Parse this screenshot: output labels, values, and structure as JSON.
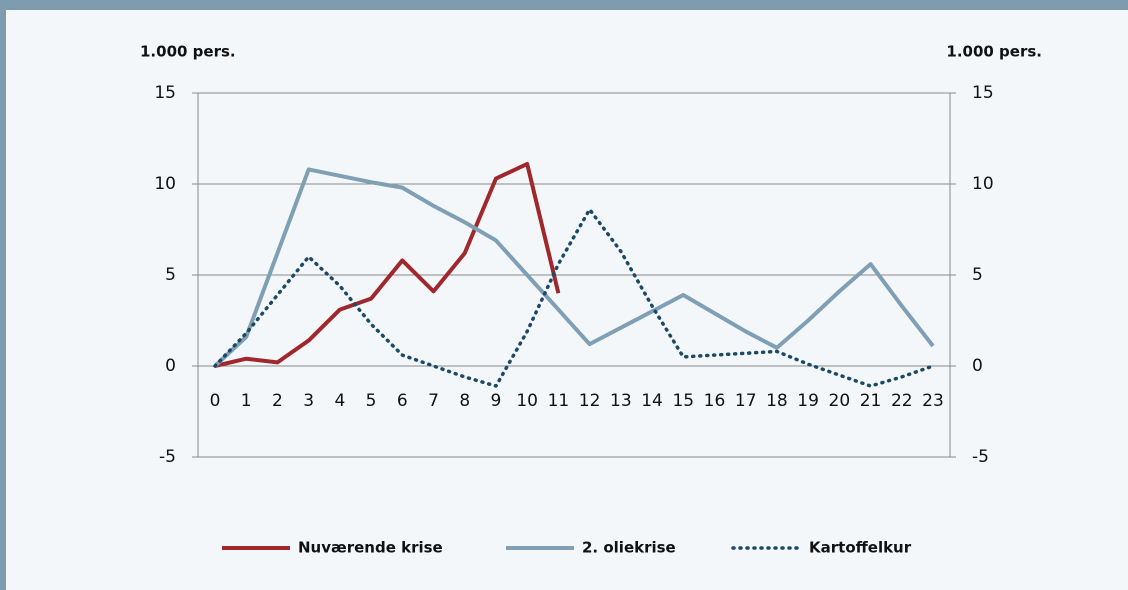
{
  "chart_data": {
    "type": "line",
    "ylabel": "1.000 pers.",
    "y2label": "1.000 pers.",
    "x": [
      0,
      1,
      2,
      3,
      4,
      5,
      6,
      7,
      8,
      9,
      10,
      11,
      12,
      13,
      14,
      15,
      16,
      17,
      18,
      19,
      20,
      21,
      22,
      23
    ],
    "xlim": [
      0,
      23
    ],
    "xticks": [
      0,
      1,
      2,
      3,
      4,
      5,
      6,
      7,
      8,
      9,
      10,
      11,
      12,
      13,
      14,
      15,
      16,
      17,
      18,
      19,
      20,
      21,
      22,
      23
    ],
    "ylim": [
      -5,
      15
    ],
    "yticks": [
      -5,
      0,
      5,
      10,
      15
    ],
    "y2lim": [
      -5,
      15
    ],
    "y2ticks": [
      -5,
      0,
      5,
      10,
      15
    ],
    "grid": true,
    "legend": "bottom",
    "series": [
      {
        "name": "Nuværende krise",
        "color": "#a0282d",
        "style": "solid",
        "values": [
          0,
          0.4,
          0.2,
          1.4,
          3.1,
          3.7,
          5.8,
          4.1,
          6.2,
          10.3,
          11.1,
          4.0,
          null,
          null,
          null,
          null,
          null,
          null,
          null,
          null,
          null,
          null,
          null,
          null
        ]
      },
      {
        "name": "2. oliekrise",
        "color": "#7f9fb5",
        "style": "solid",
        "values": [
          0,
          1.6,
          6.2,
          10.8,
          10.45,
          10.1,
          9.8,
          8.8,
          7.9,
          6.9,
          5.0,
          3.1,
          1.2,
          2.1,
          3.0,
          3.9,
          2.9,
          1.9,
          1.0,
          2.5,
          4.1,
          5.6,
          3.3,
          1.1
        ]
      },
      {
        "name": "Kartoffelkur",
        "color": "#1a4a66",
        "style": "dotted",
        "values": [
          0,
          1.8,
          3.9,
          6.0,
          4.4,
          2.3,
          0.6,
          0,
          -0.6,
          -1.1,
          1.9,
          5.6,
          8.6,
          6.3,
          3.3,
          0.5,
          0.6,
          0.7,
          0.8,
          0.1,
          -0.5,
          -1.1,
          -0.6,
          0
        ]
      }
    ]
  }
}
